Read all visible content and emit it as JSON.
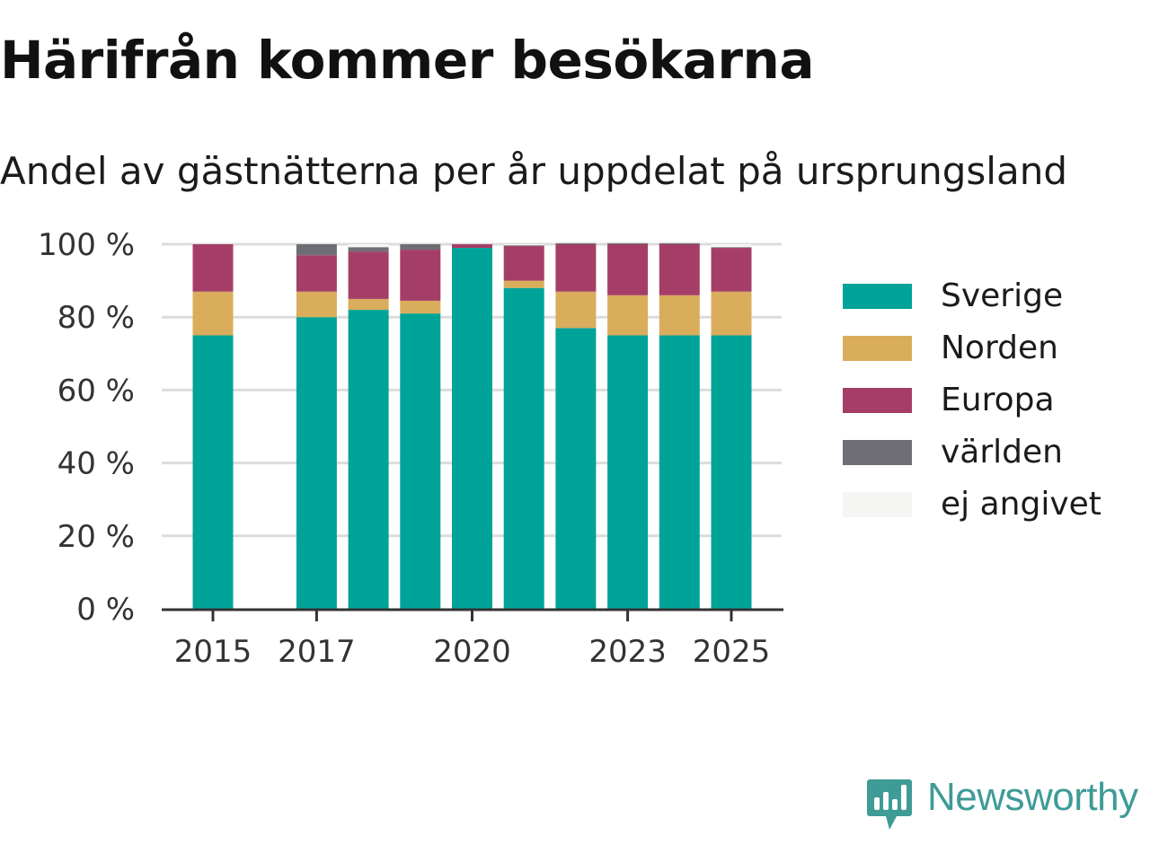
{
  "title": "Härifrån kommer besökarna",
  "subtitle": "Andel av gästnätterna per år uppdelat på ursprungsland",
  "brand": {
    "name": "Newsworthy",
    "color": "#3e9b96",
    "icon": "newsworthy-logo-icon"
  },
  "chart_data": {
    "type": "bar",
    "stacked": true,
    "categories": [
      2015,
      2017,
      2018,
      2019,
      2020,
      2021,
      2022,
      2023,
      2024,
      2025
    ],
    "x_ticks": [
      "2015",
      "2017",
      "2020",
      "2023",
      "2025"
    ],
    "y_ticks": [
      "0 %",
      "20 %",
      "40 %",
      "60 %",
      "80 %",
      "100 %"
    ],
    "ylim": [
      0,
      100
    ],
    "grid": true,
    "legend_position": "right",
    "series": [
      {
        "name": "Sverige",
        "color": "#00a398",
        "values": [
          75,
          80,
          82,
          81,
          99,
          88,
          77,
          75,
          75,
          75
        ]
      },
      {
        "name": "Norden",
        "color": "#d9ad5b",
        "values": [
          12,
          7,
          3,
          3.5,
          0,
          2,
          10,
          11,
          11,
          12
        ]
      },
      {
        "name": "Europa",
        "color": "#a53e67",
        "values": [
          13,
          10,
          13,
          14,
          1,
          9.5,
          13,
          14,
          14,
          12
        ]
      },
      {
        "name": "världen",
        "color": "#6f6e74",
        "values": [
          0,
          3,
          1.2,
          1.5,
          0,
          0.2,
          0.3,
          0.3,
          0.3,
          0.2
        ]
      },
      {
        "name": "ej angivet",
        "color": "#f5f5f3",
        "values": [
          0,
          0,
          0.8,
          0,
          0,
          0.3,
          0.5,
          0.5,
          0.5,
          0.8
        ]
      }
    ]
  }
}
